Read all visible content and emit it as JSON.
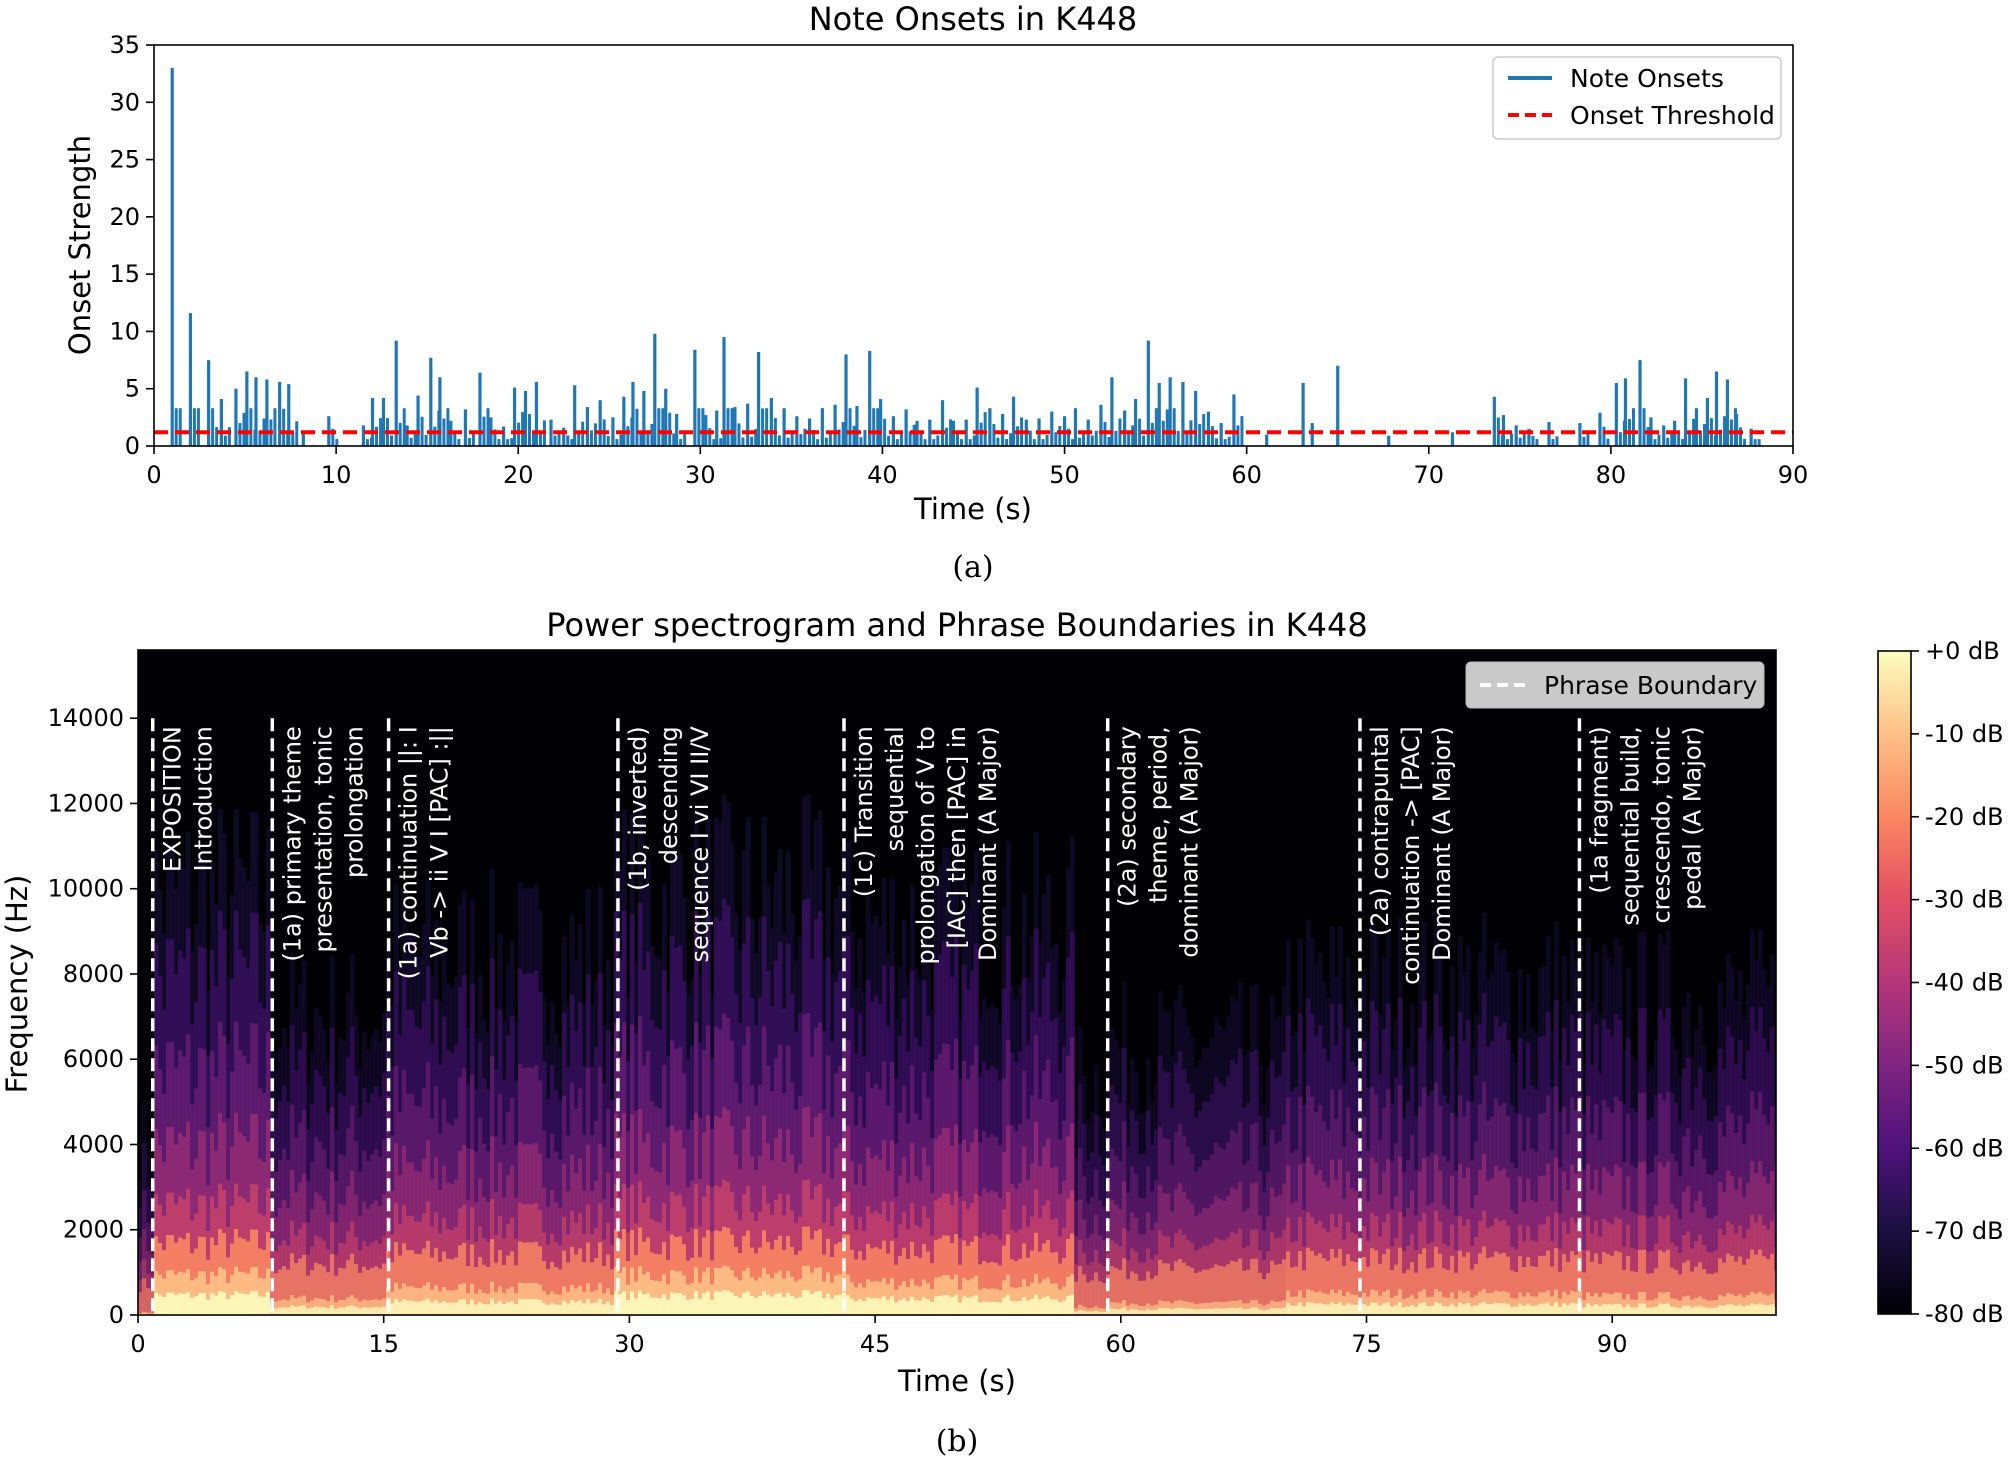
{
  "figure_a_caption": "(a)",
  "figure_b_caption": "(b)",
  "chart_data": [
    {
      "type": "bar",
      "title": "Note Onsets in K448",
      "xlabel": "Time (s)",
      "ylabel": "Onset Strength",
      "xlim": [
        0,
        90
      ],
      "ylim": [
        0,
        35
      ],
      "xticks": [
        "0",
        "10",
        "20",
        "30",
        "40",
        "50",
        "60",
        "70",
        "80",
        "90"
      ],
      "yticks": [
        "0",
        "5",
        "10",
        "15",
        "20",
        "25",
        "30",
        "35"
      ],
      "legend_position": "top-right",
      "grid": false,
      "series": [
        {
          "name": "Note Onsets",
          "color": "#1f77b4",
          "style": "vertical stems",
          "points": [
            {
              "x": 1.0,
              "y": 33.0
            },
            {
              "x": 2.0,
              "y": 11.6
            },
            {
              "x": 3.0,
              "y": 7.5
            },
            {
              "x": 3.7,
              "y": 4.1
            },
            {
              "x": 4.5,
              "y": 5.0
            },
            {
              "x": 5.1,
              "y": 6.5
            },
            {
              "x": 5.6,
              "y": 6.0
            },
            {
              "x": 6.2,
              "y": 5.8
            },
            {
              "x": 6.9,
              "y": 5.6
            },
            {
              "x": 7.4,
              "y": 5.4
            },
            {
              "x": 8.2,
              "y": 1.2
            },
            {
              "x": 9.6,
              "y": 2.6
            },
            {
              "x": 11.5,
              "y": 1.8
            },
            {
              "x": 12.0,
              "y": 4.2
            },
            {
              "x": 12.6,
              "y": 4.2
            },
            {
              "x": 13.3,
              "y": 9.2
            },
            {
              "x": 13.9,
              "y": 1.8
            },
            {
              "x": 14.5,
              "y": 4.4
            },
            {
              "x": 15.2,
              "y": 7.7
            },
            {
              "x": 15.7,
              "y": 6.0
            },
            {
              "x": 16.3,
              "y": 2.2
            },
            {
              "x": 17.1,
              "y": 3.2
            },
            {
              "x": 17.9,
              "y": 6.4
            },
            {
              "x": 18.5,
              "y": 2.5
            },
            {
              "x": 19.2,
              "y": 1.7
            },
            {
              "x": 19.8,
              "y": 5.1
            },
            {
              "x": 20.4,
              "y": 4.8
            },
            {
              "x": 21.0,
              "y": 5.6
            },
            {
              "x": 21.8,
              "y": 2.3
            },
            {
              "x": 22.5,
              "y": 1.6
            },
            {
              "x": 23.1,
              "y": 5.3
            },
            {
              "x": 23.8,
              "y": 3.4
            },
            {
              "x": 24.5,
              "y": 4.0
            },
            {
              "x": 25.2,
              "y": 2.5
            },
            {
              "x": 25.8,
              "y": 4.3
            },
            {
              "x": 26.3,
              "y": 5.6
            },
            {
              "x": 26.9,
              "y": 4.8
            },
            {
              "x": 27.5,
              "y": 9.8
            },
            {
              "x": 28.1,
              "y": 5.0
            },
            {
              "x": 28.7,
              "y": 2.8
            },
            {
              "x": 29.7,
              "y": 8.4
            },
            {
              "x": 30.3,
              "y": 2.7
            },
            {
              "x": 30.9,
              "y": 3.1
            },
            {
              "x": 31.3,
              "y": 9.5
            },
            {
              "x": 31.9,
              "y": 3.4
            },
            {
              "x": 32.6,
              "y": 3.7
            },
            {
              "x": 33.2,
              "y": 8.2
            },
            {
              "x": 33.9,
              "y": 4.2
            },
            {
              "x": 34.6,
              "y": 3.3
            },
            {
              "x": 35.3,
              "y": 2.6
            },
            {
              "x": 36.0,
              "y": 2.4
            },
            {
              "x": 36.7,
              "y": 3.3
            },
            {
              "x": 37.4,
              "y": 3.6
            },
            {
              "x": 38.0,
              "y": 8.0
            },
            {
              "x": 38.6,
              "y": 3.5
            },
            {
              "x": 39.3,
              "y": 8.3
            },
            {
              "x": 39.9,
              "y": 4.1
            },
            {
              "x": 40.6,
              "y": 2.6
            },
            {
              "x": 41.3,
              "y": 3.2
            },
            {
              "x": 41.9,
              "y": 2.2
            },
            {
              "x": 42.6,
              "y": 2.3
            },
            {
              "x": 43.3,
              "y": 4.0
            },
            {
              "x": 43.9,
              "y": 2.2
            },
            {
              "x": 44.6,
              "y": 2.3
            },
            {
              "x": 45.2,
              "y": 5.1
            },
            {
              "x": 45.9,
              "y": 3.3
            },
            {
              "x": 46.6,
              "y": 2.8
            },
            {
              "x": 47.2,
              "y": 4.3
            },
            {
              "x": 47.9,
              "y": 2.3
            },
            {
              "x": 48.6,
              "y": 2.4
            },
            {
              "x": 49.3,
              "y": 3.0
            },
            {
              "x": 50.0,
              "y": 2.6
            },
            {
              "x": 50.6,
              "y": 3.3
            },
            {
              "x": 51.3,
              "y": 2.3
            },
            {
              "x": 52.0,
              "y": 3.6
            },
            {
              "x": 52.6,
              "y": 6.0
            },
            {
              "x": 53.3,
              "y": 3.1
            },
            {
              "x": 53.9,
              "y": 4.1
            },
            {
              "x": 54.6,
              "y": 9.2
            },
            {
              "x": 55.2,
              "y": 5.5
            },
            {
              "x": 55.8,
              "y": 6.0
            },
            {
              "x": 56.5,
              "y": 5.6
            },
            {
              "x": 57.2,
              "y": 4.8
            },
            {
              "x": 57.9,
              "y": 3.0
            },
            {
              "x": 58.6,
              "y": 2.0
            },
            {
              "x": 59.3,
              "y": 4.5
            },
            {
              "x": 61.1,
              "y": 1.0
            },
            {
              "x": 63.1,
              "y": 5.5
            },
            {
              "x": 63.6,
              "y": 2.0
            },
            {
              "x": 65.0,
              "y": 7.0
            },
            {
              "x": 67.8,
              "y": 0.9
            },
            {
              "x": 71.3,
              "y": 1.2
            },
            {
              "x": 73.6,
              "y": 4.3
            },
            {
              "x": 74.1,
              "y": 2.7
            },
            {
              "x": 74.8,
              "y": 1.8
            },
            {
              "x": 75.5,
              "y": 1.5
            },
            {
              "x": 76.6,
              "y": 2.1
            },
            {
              "x": 78.3,
              "y": 2.0
            },
            {
              "x": 79.4,
              "y": 2.9
            },
            {
              "x": 80.3,
              "y": 5.5
            },
            {
              "x": 80.8,
              "y": 5.9
            },
            {
              "x": 81.6,
              "y": 7.5
            },
            {
              "x": 82.2,
              "y": 2.5
            },
            {
              "x": 82.9,
              "y": 1.8
            },
            {
              "x": 83.5,
              "y": 2.2
            },
            {
              "x": 84.1,
              "y": 5.9
            },
            {
              "x": 84.7,
              "y": 3.3
            },
            {
              "x": 85.3,
              "y": 4.2
            },
            {
              "x": 85.8,
              "y": 6.5
            },
            {
              "x": 86.4,
              "y": 5.8
            },
            {
              "x": 86.9,
              "y": 2.8
            },
            {
              "x": 87.7,
              "y": 1.5
            }
          ]
        },
        {
          "name": "Onset Threshold",
          "color": "#ff0000",
          "style": "dashed horizontal line",
          "y": 1.2
        }
      ]
    },
    {
      "type": "heatmap",
      "title": "Power spectrogram and Phrase Boundaries in K448",
      "xlabel": "Time (s)",
      "ylabel": "Frequency (Hz)",
      "xlim": [
        0,
        100
      ],
      "ylim": [
        0,
        15600
      ],
      "xticks": [
        "0",
        "15",
        "30",
        "45",
        "60",
        "75",
        "90"
      ],
      "yticks": [
        "0",
        "2000",
        "4000",
        "6000",
        "8000",
        "10000",
        "12000",
        "14000"
      ],
      "colormap": "magma",
      "colorbar": {
        "range_db": [
          -80,
          0
        ],
        "ticks": [
          "+0 dB",
          "-10 dB",
          "-20 dB",
          "-30 dB",
          "-40 dB",
          "-50 dB",
          "-60 dB",
          "-70 dB",
          "-80 dB"
        ]
      },
      "legend_position": "top-right",
      "legend_label": "Phrase Boundary",
      "boundary_color": "#ffffff",
      "phrase_boundaries": [
        {
          "t": 0.9,
          "label_lines": [
            "EXPOSITION",
            "Introduction"
          ]
        },
        {
          "t": 8.2,
          "label_lines": [
            "(1a) primary theme",
            "presentation, tonic",
            "prolongation"
          ]
        },
        {
          "t": 15.3,
          "label_lines": [
            "(1a) continuation ||: I",
            "Vb -> ii V I [PAC] :||"
          ]
        },
        {
          "t": 29.3,
          "label_lines": [
            "(1b,  inverted)",
            "descending",
            "sequence I vi VI II/V"
          ]
        },
        {
          "t": 43.1,
          "label_lines": [
            "(1c) Transition",
            "sequential",
            "prolongation of V to",
            "[IAC] then [PAC] in",
            "Dominant (A Major)"
          ]
        },
        {
          "t": 59.2,
          "label_lines": [
            "(2a) secondary",
            "theme, period,",
            "dominant (A Major)"
          ]
        },
        {
          "t": 74.6,
          "label_lines": [
            "(2a) contrapuntal",
            "continuation -> [PAC]",
            "Dominant (A Major)"
          ]
        },
        {
          "t": 88.0,
          "label_lines": [
            "(1a fragment)",
            "sequential build,",
            "crescendo, tonic",
            "pedal (A Major)"
          ]
        }
      ]
    }
  ]
}
